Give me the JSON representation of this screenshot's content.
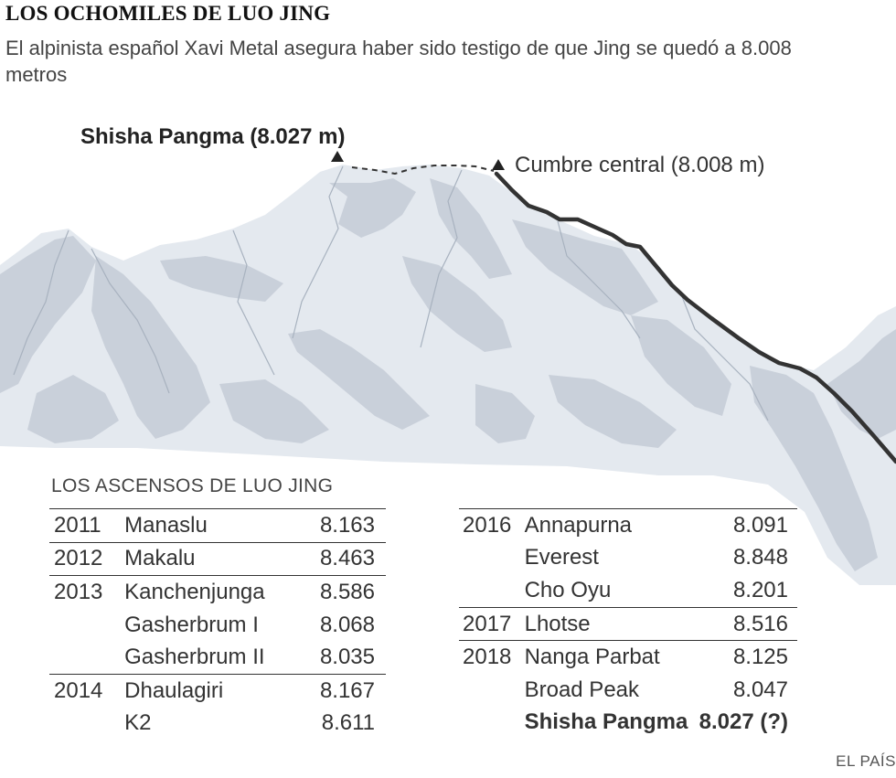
{
  "title": "LOS OCHOMILES DE LUO JING",
  "subtitle": "El alpinista español Xavi Metal asegura haber sido testigo de que Jing se quedó a 8.008 metros",
  "illustration": {
    "main_summit_label": "Shisha Pangma (8.027 m)",
    "central_summit_label": "Cumbre central (8.008 m)",
    "colors": {
      "snow": "#e4e9ef",
      "rock": "#c9d0da",
      "route": "#333333"
    }
  },
  "table": {
    "heading": "LOS ASCENSOS DE LUO JING",
    "left": [
      {
        "year": "2011",
        "peak": "Manaslu",
        "altitude": "8.163",
        "separator": true
      },
      {
        "year": "2012",
        "peak": "Makalu",
        "altitude": "8.463",
        "separator": true
      },
      {
        "year": "2013",
        "peak": "Kanchenjunga",
        "altitude": "8.586",
        "separator": true
      },
      {
        "year": "",
        "peak": "Gasherbrum I",
        "altitude": "8.068",
        "separator": false
      },
      {
        "year": "",
        "peak": "Gasherbrum II",
        "altitude": "8.035",
        "separator": false
      },
      {
        "year": "2014",
        "peak": "Dhaulagiri",
        "altitude": "8.167",
        "separator": true
      },
      {
        "year": "",
        "peak": "K2",
        "altitude": "8.611",
        "separator": false
      }
    ],
    "right": [
      {
        "year": "2016",
        "peak": "Annapurna",
        "altitude": "8.091",
        "separator": true,
        "bold": false
      },
      {
        "year": "",
        "peak": "Everest",
        "altitude": "8.848",
        "separator": false,
        "bold": false
      },
      {
        "year": "",
        "peak": "Cho Oyu",
        "altitude": "8.201",
        "separator": false,
        "bold": false
      },
      {
        "year": "2017",
        "peak": "Lhotse",
        "altitude": "8.516",
        "separator": true,
        "bold": false
      },
      {
        "year": "2018",
        "peak": "Nanga Parbat",
        "altitude": "8.125",
        "separator": true,
        "bold": false
      },
      {
        "year": "",
        "peak": "Broad Peak",
        "altitude": "8.047",
        "separator": false,
        "bold": false
      },
      {
        "year": "",
        "peak": "Shisha Pangma",
        "altitude": "8.027 (?)",
        "separator": false,
        "bold": true
      }
    ]
  },
  "credit": "EL PAÍS"
}
